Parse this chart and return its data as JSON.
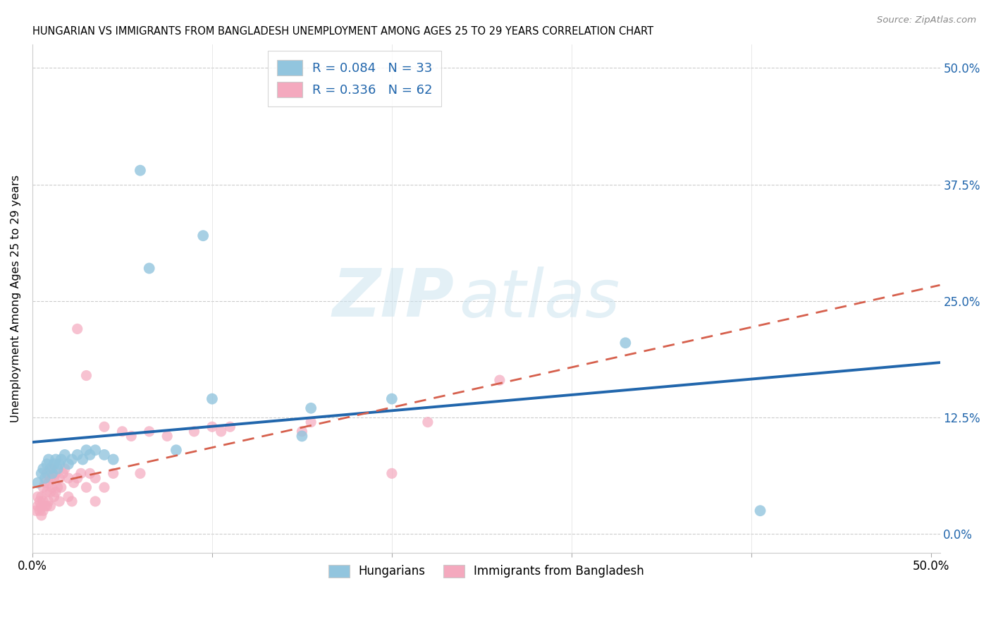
{
  "title": "HUNGARIAN VS IMMIGRANTS FROM BANGLADESH UNEMPLOYMENT AMONG AGES 25 TO 29 YEARS CORRELATION CHART",
  "source": "Source: ZipAtlas.com",
  "ylabel": "Unemployment Among Ages 25 to 29 years",
  "xmin": 0.0,
  "xmax": 0.505,
  "ymin": -0.02,
  "ymax": 0.525,
  "blue_color": "#92c5de",
  "pink_color": "#f4a9be",
  "blue_line_color": "#2166ac",
  "pink_line_color": "#d6604d",
  "R_hungarian": 0.084,
  "N_hungarian": 33,
  "R_bangladesh": 0.336,
  "N_bangladesh": 62,
  "hungarian_x": [
    0.003,
    0.005,
    0.006,
    0.007,
    0.008,
    0.009,
    0.01,
    0.011,
    0.012,
    0.013,
    0.014,
    0.015,
    0.016,
    0.018,
    0.02,
    0.022,
    0.025,
    0.028,
    0.03,
    0.032,
    0.035,
    0.04,
    0.045,
    0.06,
    0.065,
    0.08,
    0.095,
    0.1,
    0.15,
    0.155,
    0.2,
    0.33,
    0.405
  ],
  "hungarian_y": [
    0.055,
    0.065,
    0.07,
    0.06,
    0.075,
    0.08,
    0.07,
    0.065,
    0.075,
    0.08,
    0.07,
    0.075,
    0.08,
    0.085,
    0.075,
    0.08,
    0.085,
    0.08,
    0.09,
    0.085,
    0.09,
    0.085,
    0.08,
    0.39,
    0.285,
    0.09,
    0.32,
    0.145,
    0.105,
    0.135,
    0.145,
    0.205,
    0.025
  ],
  "bangladesh_x": [
    0.002,
    0.003,
    0.003,
    0.004,
    0.004,
    0.005,
    0.005,
    0.005,
    0.006,
    0.006,
    0.006,
    0.007,
    0.007,
    0.008,
    0.008,
    0.008,
    0.009,
    0.009,
    0.01,
    0.01,
    0.01,
    0.011,
    0.011,
    0.012,
    0.012,
    0.013,
    0.013,
    0.014,
    0.015,
    0.015,
    0.016,
    0.017,
    0.018,
    0.02,
    0.02,
    0.022,
    0.023,
    0.025,
    0.025,
    0.027,
    0.03,
    0.03,
    0.032,
    0.035,
    0.035,
    0.04,
    0.04,
    0.045,
    0.05,
    0.055,
    0.06,
    0.065,
    0.075,
    0.09,
    0.1,
    0.105,
    0.11,
    0.15,
    0.155,
    0.2,
    0.22,
    0.26
  ],
  "bangladesh_y": [
    0.025,
    0.03,
    0.04,
    0.025,
    0.035,
    0.02,
    0.03,
    0.04,
    0.025,
    0.035,
    0.05,
    0.03,
    0.055,
    0.03,
    0.045,
    0.065,
    0.035,
    0.055,
    0.03,
    0.045,
    0.06,
    0.05,
    0.07,
    0.04,
    0.06,
    0.045,
    0.065,
    0.05,
    0.035,
    0.06,
    0.05,
    0.065,
    0.07,
    0.04,
    0.06,
    0.035,
    0.055,
    0.06,
    0.22,
    0.065,
    0.05,
    0.17,
    0.065,
    0.035,
    0.06,
    0.05,
    0.115,
    0.065,
    0.11,
    0.105,
    0.065,
    0.11,
    0.105,
    0.11,
    0.115,
    0.11,
    0.115,
    0.11,
    0.12,
    0.065,
    0.12,
    0.165
  ],
  "watermark_zip": "ZIP",
  "watermark_atlas": "atlas"
}
